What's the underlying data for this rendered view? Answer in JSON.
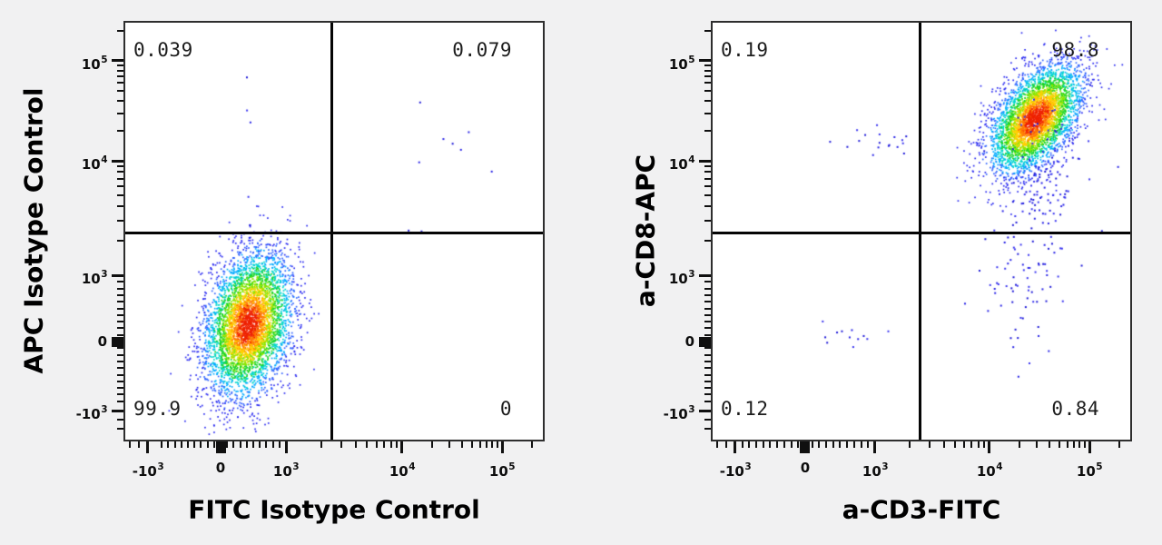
{
  "figure": {
    "description": "Two flow cytometry pseudocolor dot plots with quadrant gates",
    "background_color": "#f1f1f2",
    "plot_background": "#ffffff",
    "plot_border_color": "#2e2e2e",
    "quadrant_line_color": "#050505",
    "sparse_dot_colors": [
      "#2823e6",
      "#3a35f0",
      "#1f1ad8"
    ],
    "density_bands": [
      [
        0.45,
        "#ee2200"
      ],
      [
        0.72,
        "#ff7a00"
      ],
      [
        0.98,
        "#ffd000"
      ],
      [
        1.22,
        "#8ce600"
      ],
      [
        1.48,
        "#17d426"
      ],
      [
        1.72,
        "#00d6ce"
      ],
      [
        1.98,
        "#00aaff"
      ],
      [
        2.3,
        "#2f62ff"
      ],
      [
        9.0,
        "#2a2af0"
      ]
    ]
  },
  "chart_data": [
    {
      "id": "isotype-control-panel",
      "type": "scatter",
      "subtype": "flow-cytometry-pseudocolor-dot-plot",
      "xlabel": "FITC Isotype Control",
      "ylabel": "APC Isotype Control",
      "axis_scale": "biexponential",
      "x_ticks": [
        {
          "value": -1000,
          "m": "-10",
          "e": "3",
          "f": 0.0543
        },
        {
          "value": 0,
          "m": "0",
          "e": null,
          "f": 0.2283
        },
        {
          "value": 1000,
          "m": "10",
          "e": "3",
          "f": 0.3848
        },
        {
          "value": 10000,
          "m": "10",
          "e": "4",
          "f": 0.663
        },
        {
          "value": 100000,
          "m": "10",
          "e": "5",
          "f": 0.9022
        }
      ],
      "y_ticks": [
        {
          "value": 100000,
          "m": "10",
          "e": "5",
          "f": 0.0915
        },
        {
          "value": 10000,
          "m": "10",
          "e": "4",
          "f": 0.3312
        },
        {
          "value": 1000,
          "m": "10",
          "e": "3",
          "f": 0.6057
        },
        {
          "value": 0,
          "m": "0",
          "e": null,
          "f": 0.7648
        },
        {
          "value": -1000,
          "m": "-10",
          "e": "3",
          "f": 0.9303
        }
      ],
      "quadrant_gate": {
        "x_frac": 0.4935,
        "y_frac": 0.5054,
        "x_value_approx": 2400,
        "y_value_approx": 2300
      },
      "quadrants": {
        "upper_left": {
          "percent": "0.039"
        },
        "upper_right": {
          "percent": "0.079"
        },
        "lower_left": {
          "percent": "99.9"
        },
        "lower_right": {
          "percent": "0"
        }
      },
      "populations": [
        {
          "name": "unstained-main",
          "n": 4600,
          "cx": 0.2935,
          "cy": 0.721,
          "sx": 0.052,
          "sy": 0.085,
          "rho": -0.25,
          "palette": "density"
        },
        {
          "name": "upper-left-streak",
          "n": 5,
          "cx": 0.292,
          "cy": 0.27,
          "sx": 0.005,
          "sy": 0.16,
          "rho": 0,
          "palette": "sparse"
        },
        {
          "name": "upper-right-sparse",
          "n": 7,
          "cx": 0.755,
          "cy": 0.295,
          "sx": 0.05,
          "sy": 0.04,
          "rho": 0,
          "palette": "sparse"
        },
        {
          "name": "near-gate-dots",
          "n": 2,
          "cx": 0.7,
          "cy": 0.497,
          "sx": 0.09,
          "sy": 0.003,
          "rho": 0,
          "palette": "sparse"
        }
      ],
      "seed": 1337
    },
    {
      "id": "cd3-cd8-panel",
      "type": "scatter",
      "subtype": "flow-cytometry-pseudocolor-dot-plot",
      "xlabel": "a-CD3-FITC",
      "ylabel": "a-CD8-APC",
      "axis_scale": "biexponential",
      "x_ticks": [
        {
          "value": -1000,
          "m": "-10",
          "e": "3",
          "f": 0.0543
        },
        {
          "value": 0,
          "m": "0",
          "e": null,
          "f": 0.2217
        },
        {
          "value": 1000,
          "m": "10",
          "e": "3",
          "f": 0.3891
        },
        {
          "value": 10000,
          "m": "10",
          "e": "4",
          "f": 0.663
        },
        {
          "value": 100000,
          "m": "10",
          "e": "5",
          "f": 0.9022
        }
      ],
      "y_ticks": [
        {
          "value": 100000,
          "m": "10",
          "e": "5",
          "f": 0.0915
        },
        {
          "value": 10000,
          "m": "10",
          "e": "4",
          "f": 0.3312
        },
        {
          "value": 1000,
          "m": "10",
          "e": "3",
          "f": 0.6057
        },
        {
          "value": 0,
          "m": "0",
          "e": null,
          "f": 0.7648
        },
        {
          "value": -1000,
          "m": "-10",
          "e": "3",
          "f": 0.9303
        }
      ],
      "quadrant_gate": {
        "x_frac": 0.4957,
        "y_frac": 0.5054,
        "x_value_approx": 2400,
        "y_value_approx": 2300
      },
      "quadrants": {
        "upper_left": {
          "percent": "0.19"
        },
        "upper_right": {
          "percent": "98.8"
        },
        "lower_left": {
          "percent": "0.12"
        },
        "lower_right": {
          "percent": "0.84"
        }
      },
      "populations": [
        {
          "name": "cd3-cd8-double-positive-main",
          "n": 4000,
          "cx": 0.7717,
          "cy": 0.229,
          "sx": 0.055,
          "sy": 0.065,
          "rho": -0.5,
          "palette": "density"
        },
        {
          "name": "main-lower-tail",
          "n": 130,
          "cx": 0.79,
          "cy": 0.4,
          "sx": 0.05,
          "sy": 0.1,
          "rho": -0.2,
          "palette": "sparse"
        },
        {
          "name": "lower-right-column",
          "n": 55,
          "cx": 0.72,
          "cy": 0.655,
          "sx": 0.055,
          "sy": 0.075,
          "rho": 0,
          "palette": "sparse"
        },
        {
          "name": "upper-left-sparse",
          "n": 18,
          "cx": 0.4,
          "cy": 0.285,
          "sx": 0.055,
          "sy": 0.03,
          "rho": 0,
          "palette": "sparse"
        },
        {
          "name": "lower-left-sparse",
          "n": 12,
          "cx": 0.335,
          "cy": 0.745,
          "sx": 0.05,
          "sy": 0.022,
          "rho": 0,
          "palette": "sparse"
        }
      ],
      "seed": 4242
    }
  ]
}
